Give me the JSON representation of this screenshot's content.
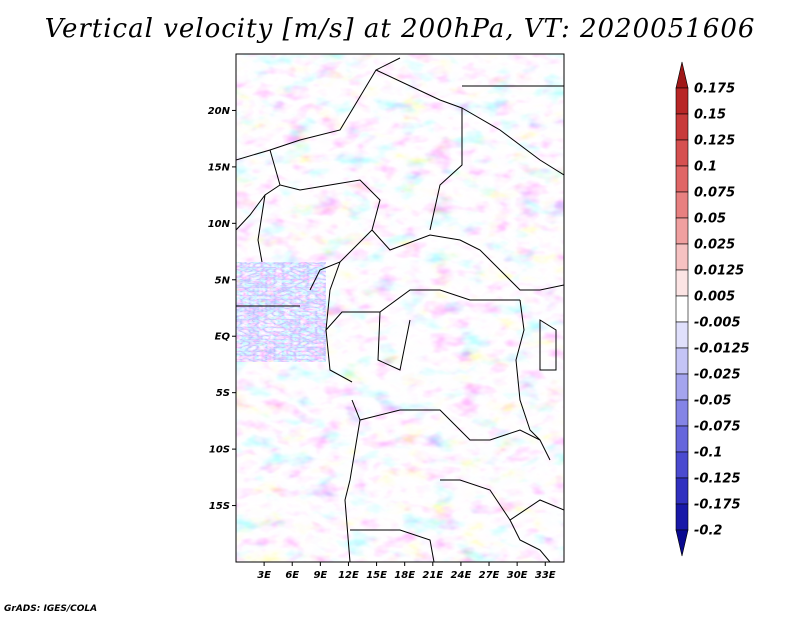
{
  "title": "Vertical velocity [m/s] at 200hPa, VT: 2020051606",
  "credit": "GrADS: IGES/COLA",
  "map": {
    "lat_labels": [
      "20N",
      "15N",
      "10N",
      "5N",
      "EQ",
      "5S",
      "10S",
      "15S"
    ],
    "lat_values": [
      20,
      15,
      10,
      5,
      0,
      -5,
      -10,
      -15
    ],
    "lon_labels": [
      "3E",
      "6E",
      "9E",
      "12E",
      "15E",
      "18E",
      "21E",
      "24E",
      "27E",
      "30E",
      "33E"
    ],
    "lon_values": [
      3,
      6,
      9,
      12,
      15,
      18,
      21,
      24,
      27,
      30,
      33
    ],
    "lon_range": [
      0,
      35
    ],
    "lat_range": [
      -20,
      25
    ]
  },
  "colorbar": {
    "labels": [
      "0.175",
      "0.15",
      "0.125",
      "0.1",
      "0.075",
      "0.05",
      "0.025",
      "0.0125",
      "0.005",
      "-0.005",
      "-0.0125",
      "-0.025",
      "-0.05",
      "-0.075",
      "-0.1",
      "-0.125",
      "-0.175",
      "-0.2"
    ],
    "colors": [
      "#a01818",
      "#b82626",
      "#c83a3a",
      "#d65050",
      "#e06666",
      "#e88080",
      "#f0a0a0",
      "#f6c2c2",
      "#fce4e4",
      "#ffffff",
      "#e0e0fc",
      "#c4c4f6",
      "#a4a4ee",
      "#8484e6",
      "#6666dc",
      "#4a4ad0",
      "#3030c0",
      "#1818a8",
      "#0a0a90"
    ]
  }
}
